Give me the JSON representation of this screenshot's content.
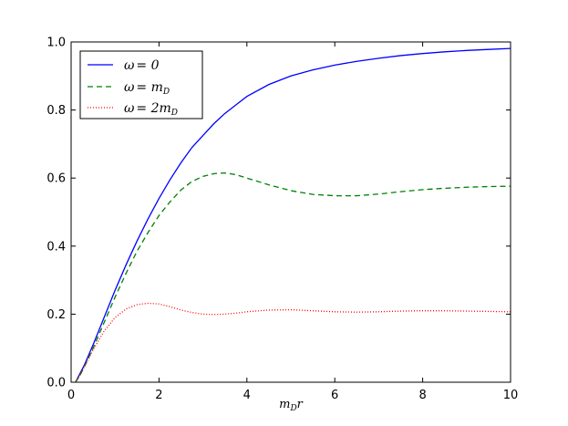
{
  "chart_data": {
    "type": "line",
    "xlabel": "m_D r",
    "xlabel_main": "m",
    "xlabel_sub": "D",
    "xlabel_tail": "r",
    "ylabel": "",
    "xlim": [
      0,
      10
    ],
    "ylim": [
      0,
      1.0
    ],
    "xticks": [
      0,
      2,
      4,
      6,
      8,
      10
    ],
    "xtick_labels": [
      "0",
      "2",
      "4",
      "6",
      "8",
      "10"
    ],
    "yticks": [
      0,
      0.2,
      0.4,
      0.6,
      0.8,
      1.0
    ],
    "ytick_labels": [
      "0.0",
      "0.2",
      "0.4",
      "0.6",
      "0.8",
      "1.0"
    ],
    "grid": false,
    "legend_position": "top-left",
    "x": [
      0.1,
      0.2,
      0.3,
      0.5,
      0.75,
      1.0,
      1.25,
      1.5,
      1.75,
      2.0,
      2.25,
      2.5,
      2.75,
      3.0,
      3.25,
      3.5,
      3.75,
      4.0,
      4.5,
      5.0,
      5.5,
      6.0,
      6.5,
      7.0,
      7.5,
      8.0,
      8.5,
      9.0,
      9.5,
      10.0
    ],
    "series": [
      {
        "name": "ω = 0",
        "name_main": "ω",
        "name_rest": "= 0",
        "name_sub": "",
        "color": "#0000ff",
        "style": "solid",
        "values": [
          0.0,
          0.025,
          0.05,
          0.11,
          0.19,
          0.27,
          0.345,
          0.415,
          0.48,
          0.54,
          0.595,
          0.645,
          0.69,
          0.725,
          0.76,
          0.79,
          0.815,
          0.84,
          0.875,
          0.9,
          0.918,
          0.932,
          0.943,
          0.952,
          0.96,
          0.966,
          0.971,
          0.975,
          0.978,
          0.981
        ]
      },
      {
        "name": "ω = m_D",
        "name_main": "ω",
        "name_rest": "= m",
        "name_sub": "D",
        "color": "#008000",
        "style": "dashed",
        "values": [
          0.0,
          0.02,
          0.045,
          0.1,
          0.175,
          0.25,
          0.32,
          0.385,
          0.44,
          0.49,
          0.53,
          0.565,
          0.59,
          0.605,
          0.613,
          0.615,
          0.61,
          0.6,
          0.58,
          0.563,
          0.552,
          0.548,
          0.548,
          0.553,
          0.56,
          0.566,
          0.57,
          0.573,
          0.575,
          0.576
        ]
      },
      {
        "name": "ω = 2m_D",
        "name_main": "ω",
        "name_rest": "= 2m",
        "name_sub": "D",
        "color": "#ff0000",
        "style": "dotted",
        "values": [
          0.0,
          0.02,
          0.045,
          0.095,
          0.15,
          0.19,
          0.215,
          0.228,
          0.232,
          0.23,
          0.222,
          0.212,
          0.205,
          0.2,
          0.199,
          0.2,
          0.203,
          0.207,
          0.212,
          0.213,
          0.21,
          0.207,
          0.206,
          0.207,
          0.209,
          0.21,
          0.21,
          0.209,
          0.208,
          0.207
        ]
      }
    ]
  }
}
